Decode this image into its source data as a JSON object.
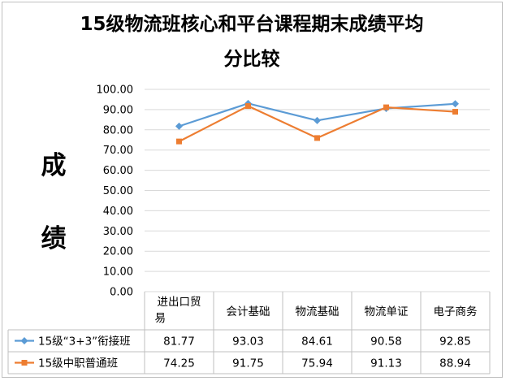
{
  "chart_data": {
    "type": "line",
    "title_line1": "15级物流班核心和平台课程期末成绩平均",
    "title_line2": "分比较",
    "ylabel": "成  绩",
    "ylabel_chars": [
      "成",
      "绩"
    ],
    "categories": [
      [
        "进出口贸",
        "易"
      ],
      [
        "会计基础"
      ],
      [
        "物流基础"
      ],
      [
        "物流单证"
      ],
      [
        "电子商务"
      ]
    ],
    "ylim": [
      0,
      100
    ],
    "yticks": [
      "0.00",
      "10.00",
      "20.00",
      "30.00",
      "40.00",
      "50.00",
      "60.00",
      "70.00",
      "80.00",
      "90.00",
      "100.00"
    ],
    "grid": true,
    "legend_placement": "data-table-left",
    "series": [
      {
        "name": "15级“3+3”衔接班",
        "values": [
          81.77,
          93.03,
          84.61,
          90.58,
          92.85
        ],
        "value_labels": [
          "81.77",
          "93.03",
          "84.61",
          "90.58",
          "92.85"
        ],
        "color": "#5b9bd5",
        "marker": "diamond"
      },
      {
        "name": "15级中职普通班",
        "values": [
          74.25,
          91.75,
          75.94,
          91.13,
          88.94
        ],
        "value_labels": [
          "74.25",
          "91.75",
          "75.94",
          "91.13",
          "88.94"
        ],
        "color": "#ed7d31",
        "marker": "square"
      }
    ]
  }
}
